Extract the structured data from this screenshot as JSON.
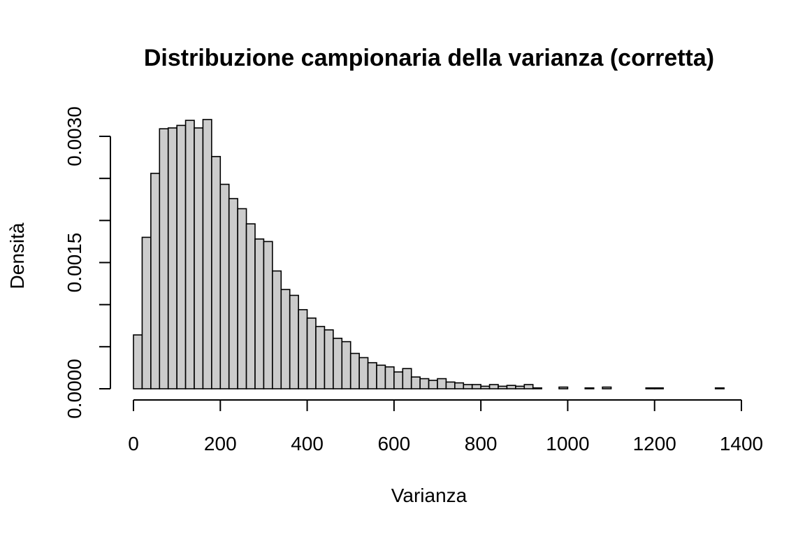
{
  "colors": {
    "bar_fill": "#cccccc",
    "bar_stroke": "#000000"
  },
  "chart_data": {
    "type": "bar",
    "title": "Distribuzione campionaria della varianza (corretta)",
    "xlabel": "Varianza",
    "ylabel": "Densità",
    "xlim": [
      0,
      1400
    ],
    "ylim": [
      0,
      0.003
    ],
    "x_ticks": [
      0,
      200,
      400,
      600,
      800,
      1000,
      1200,
      1400
    ],
    "x_tick_labels": [
      "0",
      "200",
      "400",
      "600",
      "800",
      "1000",
      "1200",
      "1400"
    ],
    "y_ticks": [
      0,
      0.0005,
      0.001,
      0.0015,
      0.002,
      0.0025,
      0.003
    ],
    "y_tick_labels": [
      "0.0000",
      "",
      "",
      "0.0015",
      "",
      "",
      "0.0030"
    ],
    "bin_width": 20,
    "bin_start": 0,
    "grid": false,
    "values": [
      0.00064,
      0.0018,
      0.00256,
      0.00309,
      0.0031,
      0.00313,
      0.00319,
      0.0031,
      0.0032,
      0.00276,
      0.00243,
      0.00226,
      0.00214,
      0.00196,
      0.00178,
      0.00175,
      0.0014,
      0.00118,
      0.00111,
      0.00094,
      0.00084,
      0.00074,
      0.0007,
      0.0006,
      0.00056,
      0.00042,
      0.00037,
      0.00031,
      0.00028,
      0.00026,
      0.0002,
      0.00024,
      0.00014,
      0.00012,
      0.0001,
      0.00012,
      8e-05,
      7e-05,
      5e-05,
      5e-05,
      3e-05,
      5e-05,
      3e-05,
      4e-05,
      3e-05,
      5e-05,
      1e-05,
      0.0,
      0.0,
      2e-05,
      0.0,
      0.0,
      1e-05,
      0.0,
      2e-05,
      0.0,
      0.0,
      0.0,
      0.0,
      1e-05,
      1e-05,
      0.0,
      0.0,
      0.0,
      0.0,
      0.0,
      0.0,
      1e-05
    ]
  }
}
